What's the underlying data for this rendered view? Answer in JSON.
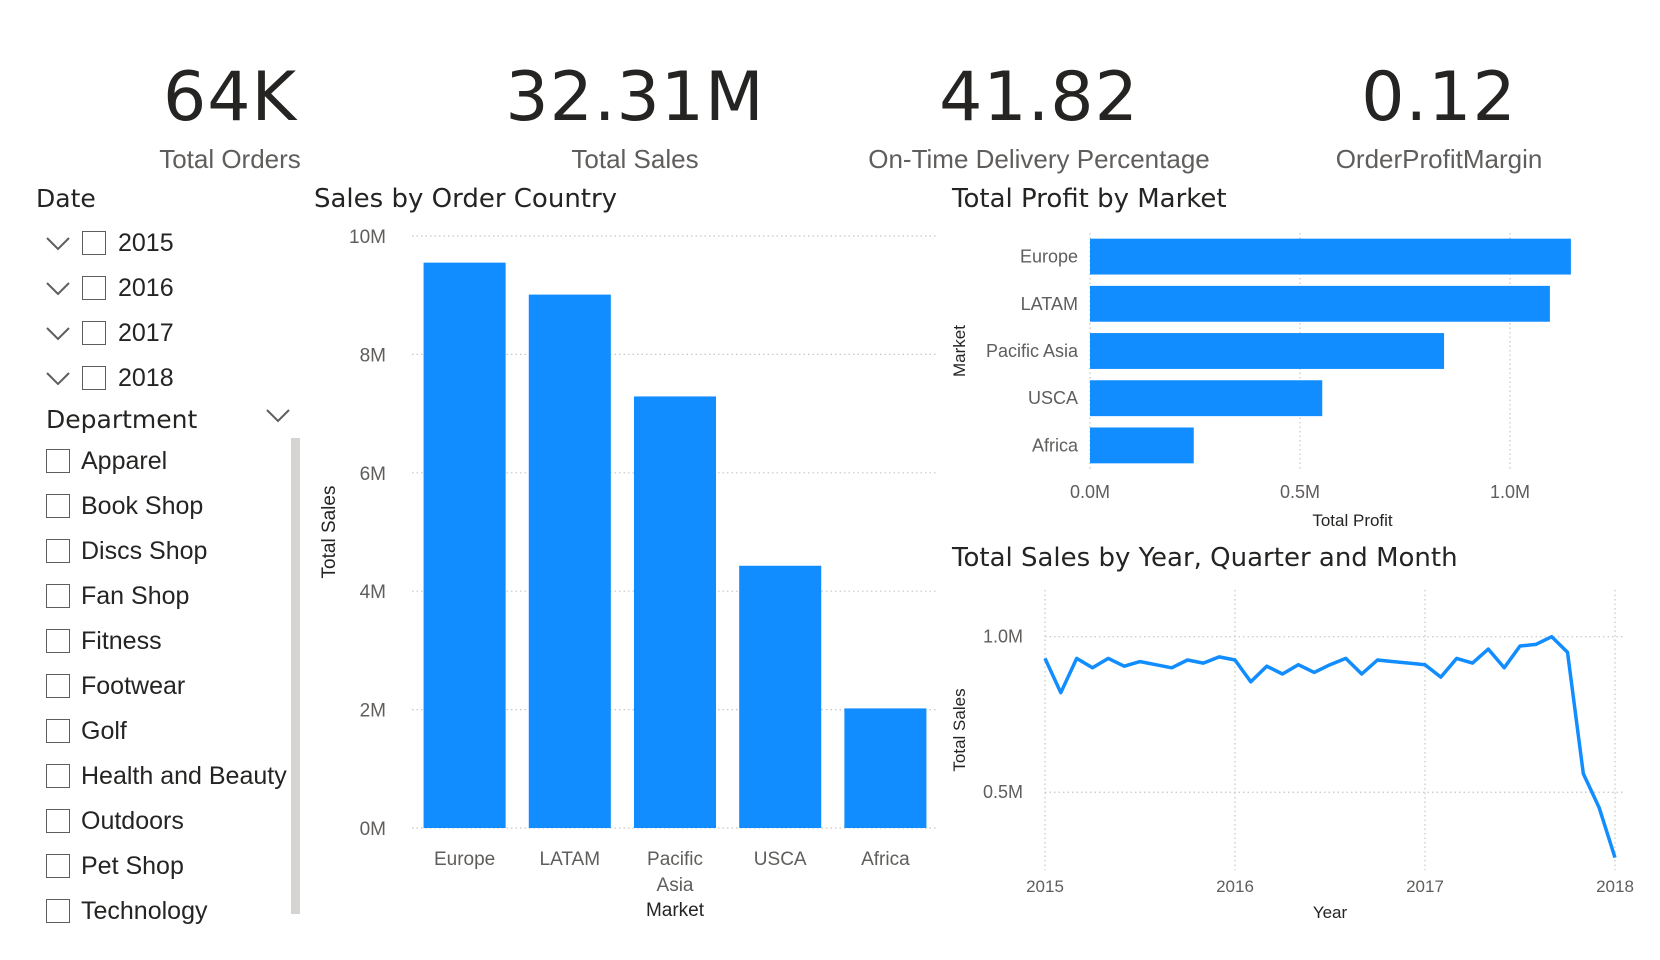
{
  "kpis": [
    {
      "value": "64K",
      "label": "Total Orders"
    },
    {
      "value": "32.31M",
      "label": "Total Sales"
    },
    {
      "value": "41.82",
      "label": "On-Time Delivery Percentage"
    },
    {
      "value": "0.12",
      "label": "OrderProfitMargin"
    }
  ],
  "date_slicer": {
    "title": "Date",
    "items": [
      "2015",
      "2016",
      "2017",
      "2018"
    ]
  },
  "department_slicer": {
    "title": "Department",
    "items": [
      "Apparel",
      "Book Shop",
      "Discs Shop",
      "Fan Shop",
      "Fitness",
      "Footwear",
      "Golf",
      "Health and Beauty",
      "Outdoors",
      "Pet Shop",
      "Technology"
    ]
  },
  "colors": {
    "bar": "#118dff",
    "grid": "#c8c6c4",
    "axis_text": "#605e5c"
  },
  "chart_data": [
    {
      "id": "sales_by_country",
      "type": "bar",
      "title": "Sales by Order Country",
      "xlabel": "Market",
      "ylabel": "Total Sales",
      "categories": [
        "Europe",
        "LATAM",
        "Pacific Asia",
        "USCA",
        "Africa"
      ],
      "category_lines": [
        [
          "Europe"
        ],
        [
          "LATAM"
        ],
        [
          "Pacific",
          "Asia"
        ],
        [
          "USCA"
        ],
        [
          "Africa"
        ]
      ],
      "values": [
        9550000,
        9010000,
        7290000,
        4430000,
        2020000
      ],
      "ylim": [
        0,
        10000000
      ],
      "yticks": [
        0,
        2000000,
        4000000,
        6000000,
        8000000,
        10000000
      ],
      "ytick_labels": [
        "0M",
        "2M",
        "4M",
        "6M",
        "8M",
        "10M"
      ],
      "grid": true
    },
    {
      "id": "profit_by_market",
      "type": "bar",
      "orientation": "horizontal",
      "title": "Total Profit by Market",
      "xlabel": "Total Profit",
      "ylabel": "Market",
      "categories": [
        "Europe",
        "LATAM",
        "Pacific Asia",
        "USCA",
        "Africa"
      ],
      "values": [
        1145000,
        1095000,
        843000,
        553000,
        247000
      ],
      "xlim": [
        0,
        1250000
      ],
      "xticks": [
        0,
        500000,
        1000000
      ],
      "xtick_labels": [
        "0.0M",
        "0.5M",
        "1.0M"
      ],
      "grid": true
    },
    {
      "id": "sales_by_time",
      "type": "line",
      "title": "Total Sales by Year, Quarter and Month",
      "xlabel": "Year",
      "ylabel": "Total Sales",
      "x": [
        2015.0,
        2015.083,
        2015.167,
        2015.25,
        2015.333,
        2015.417,
        2015.5,
        2015.583,
        2015.667,
        2015.75,
        2015.833,
        2015.917,
        2016.0,
        2016.083,
        2016.167,
        2016.25,
        2016.333,
        2016.417,
        2016.5,
        2016.583,
        2016.667,
        2016.75,
        2016.833,
        2016.917,
        2017.0,
        2017.083,
        2017.167,
        2017.25,
        2017.333,
        2017.417,
        2017.5,
        2017.583,
        2017.667,
        2017.75,
        2017.833,
        2017.917,
        2018.0
      ],
      "y": [
        930000,
        820000,
        930000,
        900000,
        930000,
        905000,
        920000,
        910000,
        900000,
        925000,
        915000,
        935000,
        925000,
        855000,
        905000,
        880000,
        910000,
        885000,
        910000,
        930000,
        880000,
        925000,
        920000,
        915000,
        910000,
        870000,
        930000,
        915000,
        960000,
        900000,
        970000,
        975000,
        1000000,
        950000,
        560000,
        450000,
        290000
      ],
      "ylim": [
        250000,
        1150000
      ],
      "yticks": [
        500000,
        1000000
      ],
      "ytick_labels": [
        "0.5M",
        "1.0M"
      ],
      "xlim": [
        2015,
        2018
      ],
      "xticks": [
        2015,
        2016,
        2017,
        2018
      ],
      "xtick_labels": [
        "2015",
        "2016",
        "2017",
        "2018"
      ],
      "grid": true
    }
  ]
}
